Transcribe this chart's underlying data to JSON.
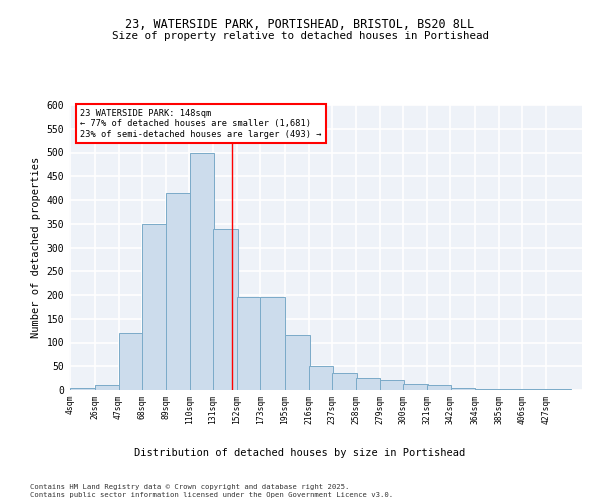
{
  "title_line1": "23, WATERSIDE PARK, PORTISHEAD, BRISTOL, BS20 8LL",
  "title_line2": "Size of property relative to detached houses in Portishead",
  "xlabel": "Distribution of detached houses by size in Portishead",
  "ylabel": "Number of detached properties",
  "footer": "Contains HM Land Registry data © Crown copyright and database right 2025.\nContains public sector information licensed under the Open Government Licence v3.0.",
  "bin_labels": [
    "4sqm",
    "26sqm",
    "47sqm",
    "68sqm",
    "89sqm",
    "110sqm",
    "131sqm",
    "152sqm",
    "173sqm",
    "195sqm",
    "216sqm",
    "237sqm",
    "258sqm",
    "279sqm",
    "300sqm",
    "321sqm",
    "342sqm",
    "364sqm",
    "385sqm",
    "406sqm",
    "427sqm"
  ],
  "bar_heights": [
    5,
    10,
    120,
    350,
    415,
    500,
    340,
    195,
    195,
    115,
    50,
    35,
    25,
    22,
    12,
    10,
    5,
    3,
    2,
    2,
    2
  ],
  "bar_color": "#ccdcec",
  "bar_edge_color": "#7aaac8",
  "annotation_text": "23 WATERSIDE PARK: 148sqm\n← 77% of detached houses are smaller (1,681)\n23% of semi-detached houses are larger (493) →",
  "annotation_box_color": "white",
  "annotation_box_edge_color": "red",
  "vline_x": 148,
  "vline_color": "red",
  "ylim": [
    0,
    600
  ],
  "yticks": [
    0,
    50,
    100,
    150,
    200,
    250,
    300,
    350,
    400,
    450,
    500,
    550,
    600
  ],
  "bg_color": "#eef2f8",
  "grid_color": "white",
  "bin_edges": [
    4,
    26,
    47,
    68,
    89,
    110,
    131,
    152,
    173,
    195,
    216,
    237,
    258,
    279,
    300,
    321,
    342,
    364,
    385,
    406,
    427,
    448
  ]
}
